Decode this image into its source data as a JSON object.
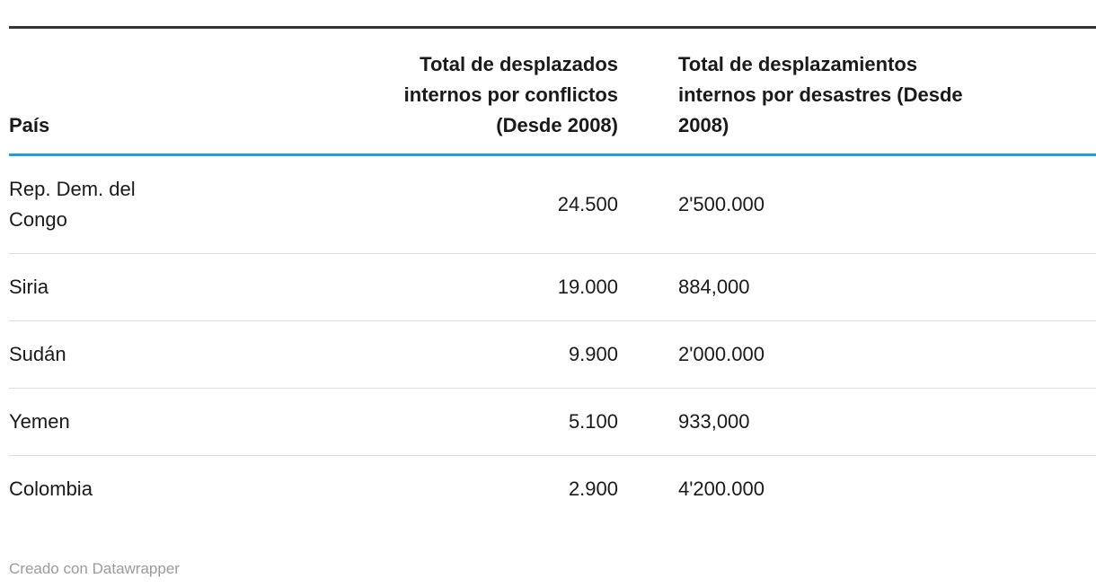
{
  "table": {
    "columns": [
      {
        "label": "País",
        "align": "left"
      },
      {
        "label": "Total de desplazados\ninternos por conflictos\n(Desde 2008)",
        "align": "right"
      },
      {
        "label": "Total de desplazamientos\ninternos por desastres (Desde\n2008)",
        "align": "left"
      }
    ],
    "rows": [
      {
        "country": "Rep. Dem. del\nCongo",
        "conflicts": "24.500",
        "disasters": "2'500.000"
      },
      {
        "country": "Siria",
        "conflicts": "19.000",
        "disasters": "884,000"
      },
      {
        "country": "Sudán",
        "conflicts": "9.900",
        "disasters": "2'000.000"
      },
      {
        "country": "Yemen",
        "conflicts": "5.100",
        "disasters": "933,000"
      },
      {
        "country": "Colombia",
        "conflicts": "2.900",
        "disasters": "4'200.000"
      }
    ]
  },
  "footer": {
    "credit": "Creado con Datawrapper"
  },
  "colors": {
    "top_rule": "#333333",
    "header_rule_blue": "#1d9ceb",
    "row_divider": "#dddddd",
    "text": "#1a1a1a",
    "credit_text": "#9b9b9b",
    "background": "#ffffff"
  },
  "chart_data": {
    "type": "table",
    "title": "",
    "columns": [
      "País",
      "Total de desplazados internos por conflictos (Desde 2008)",
      "Total de desplazamientos internos por desastres (Desde 2008)"
    ],
    "rows": [
      [
        "Rep. Dem. del Congo",
        "24.500",
        "2'500.000"
      ],
      [
        "Siria",
        "19.000",
        "884,000"
      ],
      [
        "Sudán",
        "9.900",
        "2'000.000"
      ],
      [
        "Yemen",
        "5.100",
        "933,000"
      ],
      [
        "Colombia",
        "2.900",
        "4'200.000"
      ]
    ],
    "layout_hints": {
      "header_bottom_rule_color": "#1d9ceb",
      "top_rule_color": "#333333",
      "column_alignment": [
        "left",
        "right",
        "left"
      ],
      "credit": "Creado con Datawrapper"
    }
  }
}
